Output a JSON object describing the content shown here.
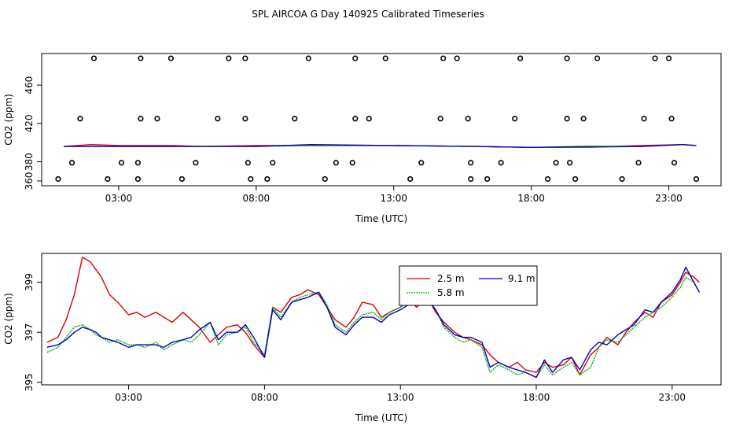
{
  "title": "SPL AIRCOA G  Day 140925  Calibrated Timeseries",
  "colors": {
    "red": "#dd0000",
    "green": "#00b000",
    "blue": "#0000cc",
    "black": "#000000"
  },
  "chart_data": [
    {
      "type": "line",
      "id": "top",
      "xlabel": "Time (UTC)",
      "ylabel": "CO2 (ppm)",
      "xlim": [
        0.2,
        24.9
      ],
      "ylim": [
        355,
        493
      ],
      "xticks": [
        3,
        8,
        13,
        18,
        23
      ],
      "xticklabels": [
        "03:00",
        "08:00",
        "13:00",
        "18:00",
        "23:00"
      ],
      "yticks": [
        360,
        380,
        420,
        460
      ],
      "yticklabels": [
        "360",
        "380",
        "420",
        "460"
      ],
      "series": [
        {
          "name": "2.5 m",
          "color": "red",
          "x": [
            1.0,
            2.0,
            3.0,
            4.0,
            5.0,
            6.0,
            8.0,
            10.0,
            13.0,
            16.0,
            18.0,
            20.0,
            22.0,
            23.5,
            24.0
          ],
          "y": [
            396,
            398,
            397,
            397,
            397,
            396,
            397,
            397,
            397,
            396,
            395,
            395,
            397,
            398,
            397
          ]
        },
        {
          "name": "5.8 m",
          "color": "green",
          "x": [
            1.0,
            3.0,
            6.0,
            8.0,
            10.0,
            13.0,
            16.0,
            18.0,
            20.0,
            22.0,
            23.5,
            24.0
          ],
          "y": [
            396,
            396,
            396,
            396,
            397,
            397,
            396,
            395,
            395,
            396,
            398,
            397
          ]
        },
        {
          "name": "9.1 m",
          "color": "blue",
          "x": [
            1.0,
            3.0,
            6.0,
            8.0,
            10.0,
            13.0,
            16.0,
            18.0,
            20.0,
            22.0,
            23.5,
            24.0
          ],
          "y": [
            396,
            396,
            396,
            396,
            398,
            397,
            396,
            395,
            396,
            396,
            398,
            397
          ]
        }
      ],
      "markers": {
        "style": "open-circle",
        "points": [
          [
            2.1,
            488
          ],
          [
            3.8,
            488
          ],
          [
            4.9,
            488
          ],
          [
            7.0,
            488
          ],
          [
            7.6,
            488
          ],
          [
            9.9,
            488
          ],
          [
            11.6,
            488
          ],
          [
            12.7,
            488
          ],
          [
            14.8,
            488
          ],
          [
            15.3,
            488
          ],
          [
            17.6,
            488
          ],
          [
            19.3,
            488
          ],
          [
            20.4,
            488
          ],
          [
            22.5,
            488
          ],
          [
            23.0,
            488
          ],
          [
            1.6,
            425
          ],
          [
            3.8,
            425
          ],
          [
            4.4,
            425
          ],
          [
            6.6,
            425
          ],
          [
            7.6,
            425
          ],
          [
            9.4,
            425
          ],
          [
            11.6,
            425
          ],
          [
            12.1,
            425
          ],
          [
            14.7,
            425
          ],
          [
            15.7,
            425
          ],
          [
            17.4,
            425
          ],
          [
            19.3,
            425
          ],
          [
            19.9,
            425
          ],
          [
            22.1,
            425
          ],
          [
            23.1,
            425
          ],
          [
            1.3,
            379
          ],
          [
            3.1,
            379
          ],
          [
            3.7,
            379
          ],
          [
            5.8,
            379
          ],
          [
            7.7,
            379
          ],
          [
            8.6,
            379
          ],
          [
            10.9,
            379
          ],
          [
            11.5,
            379
          ],
          [
            14.0,
            379
          ],
          [
            15.8,
            379
          ],
          [
            16.9,
            379
          ],
          [
            18.9,
            379
          ],
          [
            19.4,
            379
          ],
          [
            21.9,
            379
          ],
          [
            23.2,
            379
          ],
          [
            0.8,
            362
          ],
          [
            2.6,
            362
          ],
          [
            3.7,
            362
          ],
          [
            5.3,
            362
          ],
          [
            7.8,
            362
          ],
          [
            8.4,
            362
          ],
          [
            10.5,
            362
          ],
          [
            13.6,
            362
          ],
          [
            15.8,
            362
          ],
          [
            16.4,
            362
          ],
          [
            18.6,
            362
          ],
          [
            19.6,
            362
          ],
          [
            21.3,
            362
          ],
          [
            24.0,
            362
          ]
        ]
      }
    },
    {
      "type": "line",
      "id": "bottom",
      "xlabel": "Time (UTC)",
      "ylabel": "CO2 (ppm)",
      "xlim": [
        -0.2,
        24.8
      ],
      "ylim": [
        394.9,
        400.15
      ],
      "xticks": [
        3,
        8,
        13,
        18,
        23
      ],
      "xticklabels": [
        "03:00",
        "08:00",
        "13:00",
        "18:00",
        "23:00"
      ],
      "yticks": [
        395,
        397,
        399
      ],
      "yticklabels": [
        "395",
        "397",
        "399"
      ],
      "legend": {
        "placement": "top-center",
        "entries": [
          "2.5 m",
          "9.1 m",
          "5.8 m"
        ]
      },
      "series": [
        {
          "name": "2.5 m",
          "color": "red",
          "x": [
            0.0,
            0.4,
            0.7,
            1.0,
            1.3,
            1.6,
            1.8,
            2.0,
            2.3,
            2.6,
            3.0,
            3.3,
            3.6,
            4.0,
            4.3,
            4.6,
            5.0,
            5.3,
            5.6,
            6.0,
            6.3,
            6.6,
            7.0,
            7.3,
            7.6,
            8.0,
            8.3,
            8.6,
            9.0,
            9.3,
            9.6,
            10.0,
            10.3,
            10.6,
            11.0,
            11.3,
            11.6,
            12.0,
            12.3,
            12.6,
            13.0,
            13.3,
            13.6,
            14.0,
            14.3,
            14.6,
            15.0,
            15.3,
            15.6,
            16.0,
            16.3,
            16.6,
            17.0,
            17.3,
            17.6,
            18.0,
            18.3,
            18.6,
            19.0,
            19.3,
            19.6,
            20.0,
            20.3,
            20.6,
            21.0,
            21.3,
            21.6,
            22.0,
            22.3,
            22.6,
            23.0,
            23.3,
            23.5,
            23.8,
            24.0
          ],
          "y": [
            396.6,
            396.8,
            397.5,
            398.5,
            400.0,
            399.8,
            399.5,
            399.2,
            398.5,
            398.2,
            397.7,
            397.8,
            397.6,
            397.8,
            397.6,
            397.4,
            397.8,
            397.5,
            397.2,
            396.6,
            396.9,
            397.2,
            397.3,
            397.0,
            396.5,
            396.0,
            398.0,
            397.8,
            398.4,
            398.5,
            398.7,
            398.5,
            398.0,
            397.5,
            397.2,
            397.6,
            398.2,
            398.1,
            397.6,
            397.8,
            398.0,
            398.3,
            398.0,
            398.4,
            397.8,
            397.4,
            397.0,
            396.8,
            396.7,
            396.5,
            396.1,
            395.8,
            395.6,
            395.8,
            395.5,
            395.4,
            395.8,
            395.6,
            395.7,
            396.0,
            395.3,
            396.1,
            396.4,
            396.8,
            396.5,
            397.0,
            397.4,
            397.8,
            397.6,
            398.2,
            398.5,
            399.0,
            399.4,
            399.2,
            399.0
          ]
        },
        {
          "name": "5.8 m",
          "color": "green",
          "x": [
            0.0,
            0.4,
            0.7,
            1.0,
            1.3,
            1.6,
            1.8,
            2.0,
            2.3,
            2.6,
            3.0,
            3.3,
            3.6,
            4.0,
            4.3,
            4.6,
            5.0,
            5.3,
            5.6,
            6.0,
            6.3,
            6.6,
            7.0,
            7.3,
            7.6,
            8.0,
            8.3,
            8.6,
            9.0,
            9.3,
            9.6,
            10.0,
            10.3,
            10.6,
            11.0,
            11.3,
            11.6,
            12.0,
            12.3,
            12.6,
            13.0,
            13.3,
            13.6,
            14.0,
            14.3,
            14.6,
            15.0,
            15.3,
            15.6,
            16.0,
            16.3,
            16.6,
            17.0,
            17.3,
            17.6,
            18.0,
            18.3,
            18.6,
            19.0,
            19.3,
            19.6,
            20.0,
            20.3,
            20.6,
            21.0,
            21.3,
            21.6,
            22.0,
            22.3,
            22.6,
            23.0,
            23.3,
            23.5,
            23.8,
            24.0
          ],
          "y": [
            396.2,
            396.4,
            396.8,
            397.2,
            397.3,
            397.1,
            396.9,
            396.8,
            396.6,
            396.7,
            396.5,
            396.5,
            396.4,
            396.6,
            396.3,
            396.5,
            396.7,
            396.6,
            396.9,
            397.4,
            396.5,
            396.9,
            397.0,
            397.2,
            396.6,
            396.1,
            398.0,
            397.6,
            398.2,
            398.4,
            398.5,
            398.6,
            398.1,
            397.3,
            397.0,
            397.4,
            397.7,
            397.8,
            397.5,
            397.8,
            398.0,
            398.2,
            398.3,
            398.4,
            397.9,
            397.2,
            396.8,
            396.6,
            396.7,
            396.4,
            395.4,
            395.7,
            395.5,
            395.3,
            395.4,
            395.2,
            395.7,
            395.3,
            395.6,
            395.8,
            395.3,
            395.6,
            396.4,
            396.7,
            396.6,
            396.9,
            397.2,
            397.6,
            397.8,
            398.0,
            398.4,
            398.8,
            399.2,
            399.0,
            398.6
          ]
        },
        {
          "name": "9.1 m",
          "color": "blue",
          "x": [
            0.0,
            0.4,
            0.7,
            1.0,
            1.3,
            1.6,
            1.8,
            2.0,
            2.3,
            2.6,
            3.0,
            3.3,
            3.6,
            4.0,
            4.3,
            4.6,
            5.0,
            5.3,
            5.6,
            6.0,
            6.3,
            6.6,
            7.0,
            7.3,
            7.6,
            8.0,
            8.3,
            8.6,
            9.0,
            9.3,
            9.6,
            10.0,
            10.3,
            10.6,
            11.0,
            11.3,
            11.6,
            12.0,
            12.3,
            12.6,
            13.0,
            13.3,
            13.6,
            14.0,
            14.3,
            14.6,
            15.0,
            15.3,
            15.6,
            16.0,
            16.3,
            16.6,
            17.0,
            17.3,
            17.6,
            18.0,
            18.3,
            18.6,
            19.0,
            19.3,
            19.6,
            20.0,
            20.3,
            20.6,
            21.0,
            21.3,
            21.6,
            22.0,
            22.3,
            22.6,
            23.0,
            23.3,
            23.5,
            23.8,
            24.0
          ],
          "y": [
            396.4,
            396.5,
            396.7,
            397.0,
            397.2,
            397.1,
            397.0,
            396.8,
            396.7,
            396.6,
            396.4,
            396.5,
            396.5,
            396.5,
            396.4,
            396.6,
            396.7,
            396.8,
            397.1,
            397.4,
            396.7,
            397.0,
            397.0,
            397.3,
            396.8,
            396.0,
            397.9,
            397.5,
            398.2,
            398.3,
            398.4,
            398.6,
            398.0,
            397.2,
            396.9,
            397.3,
            397.6,
            397.6,
            397.4,
            397.7,
            397.9,
            398.1,
            398.5,
            398.3,
            397.9,
            397.3,
            396.9,
            396.8,
            396.8,
            396.6,
            395.6,
            395.8,
            395.6,
            395.5,
            395.4,
            395.2,
            395.9,
            395.4,
            395.9,
            396.0,
            395.5,
            396.3,
            396.6,
            396.5,
            396.9,
            397.1,
            397.3,
            397.9,
            397.8,
            398.2,
            398.6,
            399.1,
            399.6,
            399.0,
            398.6
          ]
        }
      ]
    }
  ]
}
